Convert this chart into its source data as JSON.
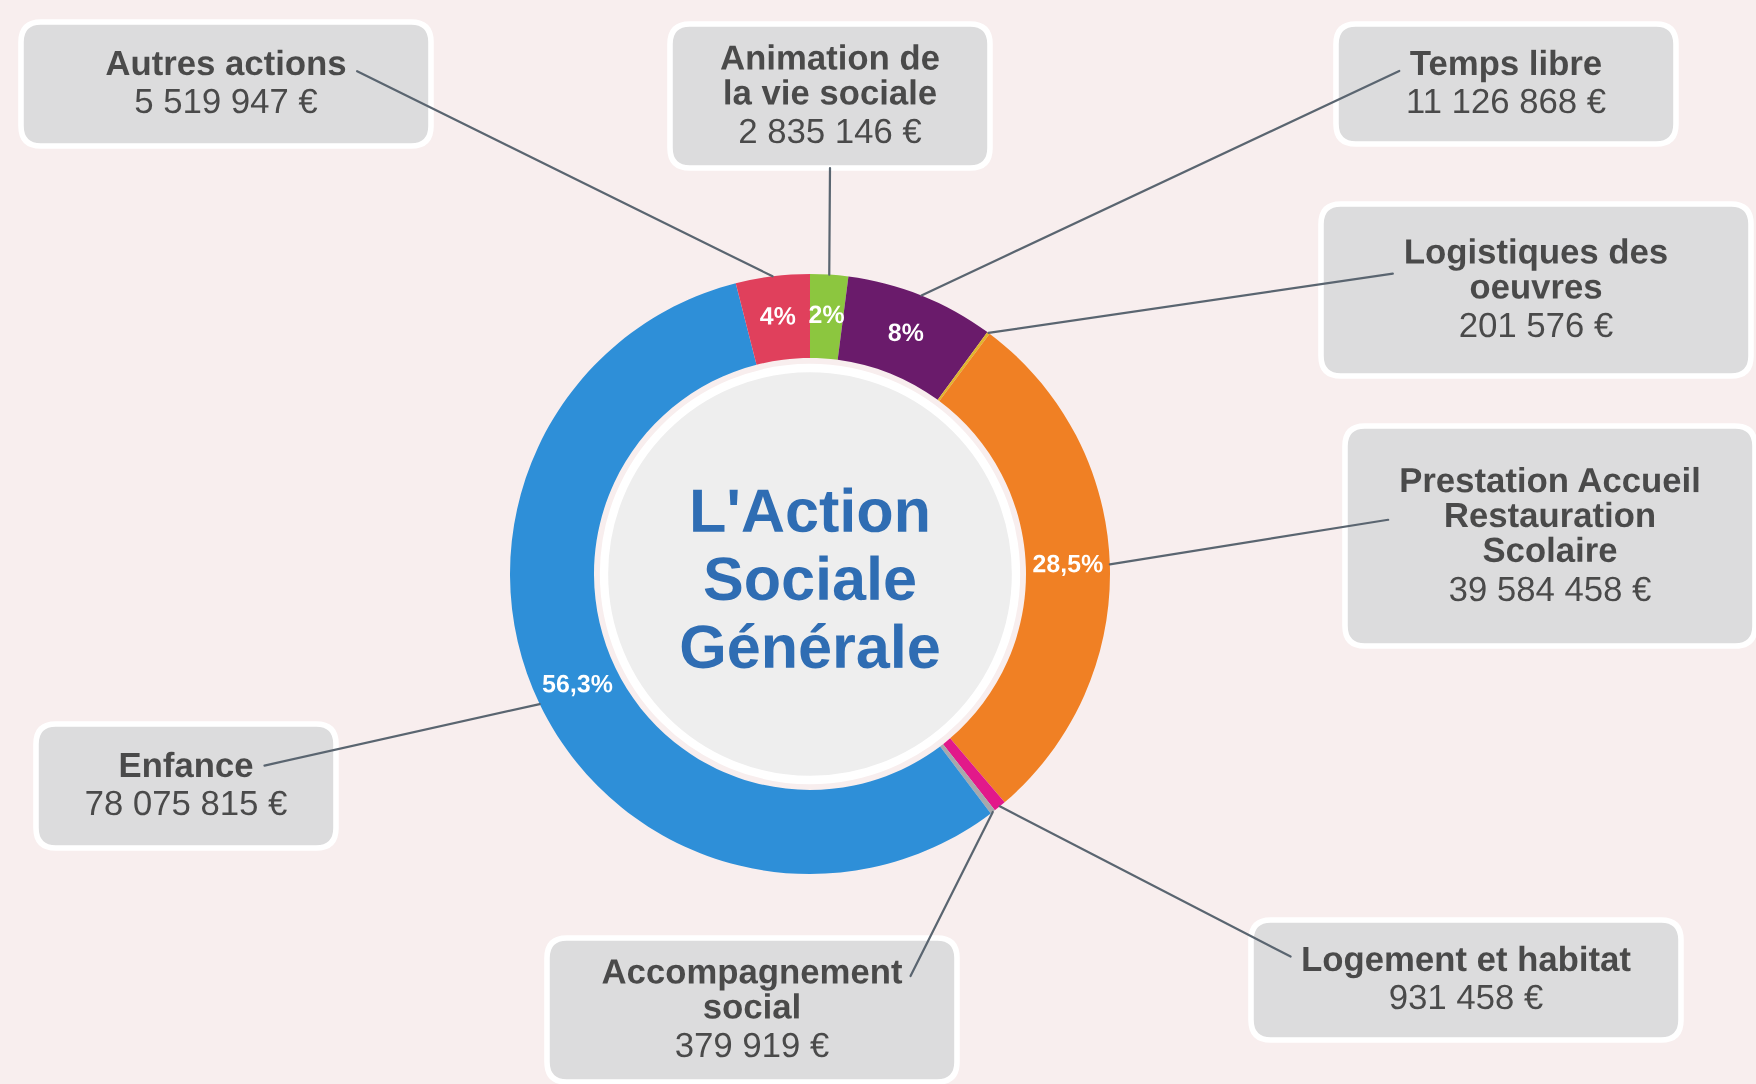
{
  "chart_data": {
    "type": "donut",
    "title": "L'Action\nSociale\nGénérale",
    "categories": [
      "Animation de\nla vie sociale",
      "Temps libre",
      "Logistiques des\noeuvres",
      "Prestation Accueil\nRestauration\nScolaire",
      "Logement et habitat",
      "Accompagnement\nsocial",
      "Enfance",
      "Autres actions"
    ],
    "values": [
      2835146,
      11126868,
      201576,
      39584458,
      931458,
      379919,
      78075815,
      5519947
    ],
    "value_labels": [
      "2 835 146 €",
      "11 126 868 €",
      "201 576 €",
      "39 584 458 €",
      "931 458 €",
      "379 919 €",
      "78 075 815 €",
      "5 519 947 €"
    ],
    "colors": [
      "#8cc63f",
      "#6a1b6b",
      "#e0b62e",
      "#f08024",
      "#e2198a",
      "#a7a9ac",
      "#2e8fd8",
      "#e0405c"
    ],
    "annotations": [
      {
        "text": "2%",
        "x": "Animation de\nla vie sociale"
      },
      {
        "text": "8%",
        "x": "Temps libre"
      },
      {
        "text": "28,5%",
        "x": "Prestation Accueil\nRestauration\nScolaire"
      },
      {
        "text": "56,3%",
        "x": "Enfance"
      },
      {
        "text": "4%",
        "x": "Autres actions"
      }
    ],
    "legend": false
  }
}
